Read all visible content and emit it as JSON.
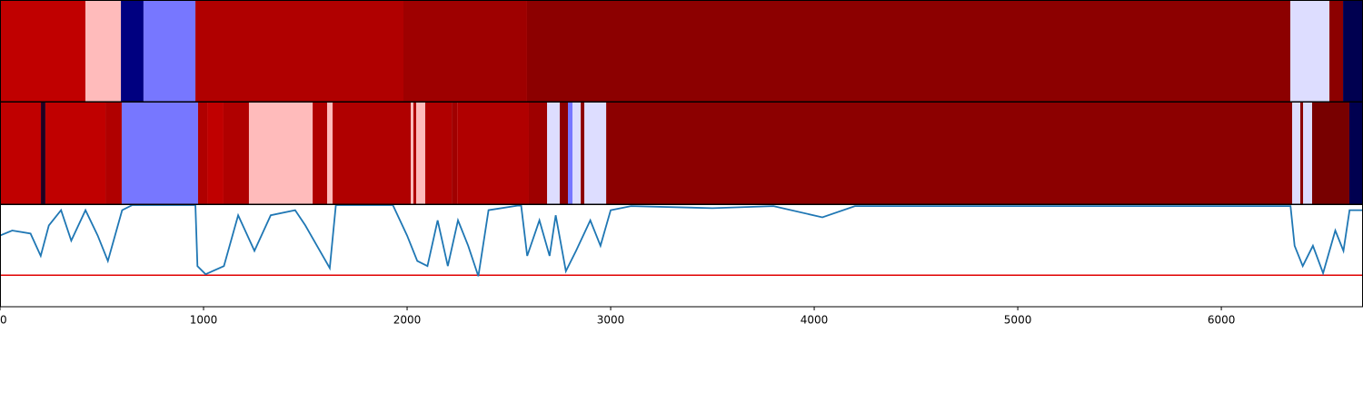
{
  "chart_data": {
    "type": "segments_and_line",
    "xlim": [
      0,
      6696
    ],
    "xticks": [
      0,
      1000,
      2000,
      3000,
      4000,
      5000,
      6000
    ],
    "tracks": [
      {
        "edges": [
          0,
          420,
          594,
          705,
          960,
          1982,
          2589,
          6339,
          6531,
          6598,
          6696
        ],
        "colors": [
          "#c00000",
          "#ffbbbb",
          "#000080",
          "#7777ff",
          "#b00000",
          "#9e0000",
          "#8c0000",
          "#ddddff",
          "#8c0000",
          "#000050"
        ]
      },
      {
        "edges": [
          0,
          201,
          223,
          518,
          598,
          973,
          1018,
          1098,
          1223,
          1536,
          1607,
          1634,
          2018,
          2031,
          2045,
          2089,
          2219,
          2246,
          2598,
          2688,
          2750,
          2790,
          2813,
          2853,
          2871,
          2978,
          6348,
          6388,
          6402,
          6446,
          6629,
          6696
        ],
        "colors": [
          "#c00000",
          "#200020",
          "#c00000",
          "#b00000",
          "#7777ff",
          "#b00000",
          "#c00000",
          "#b00000",
          "#ffbbbb",
          "#b00000",
          "#ffbbbb",
          "#b00000",
          "#ffbbbb",
          "#b00000",
          "#ffbbbb",
          "#b00000",
          "#a00000",
          "#b00000",
          "#9e0000",
          "#ddddff",
          "#8c0000",
          "#7777ff",
          "#ddddff",
          "#8c0000",
          "#ddddff",
          "#8c0000",
          "#ddddff",
          "#8c0000",
          "#ddddff",
          "#780000",
          "#000050"
        ]
      }
    ],
    "line": {
      "color": "#1f77b4",
      "ylim": [
        0,
        1
      ],
      "x": [
        0,
        60,
        150,
        200,
        240,
        300,
        350,
        420,
        480,
        530,
        600,
        650,
        960,
        970,
        1010,
        1100,
        1170,
        1250,
        1330,
        1450,
        1500,
        1600,
        1620,
        1650,
        1930,
        2000,
        2050,
        2100,
        2150,
        2200,
        2250,
        2300,
        2350,
        2400,
        2560,
        2590,
        2650,
        2700,
        2730,
        2780,
        2830,
        2900,
        2950,
        3000,
        3100,
        3500,
        3800,
        4040,
        4200,
        6340,
        6360,
        6400,
        6450,
        6500,
        6560,
        6600,
        6630,
        6696
      ],
      "values": [
        0.7,
        0.75,
        0.72,
        0.5,
        0.8,
        0.95,
        0.65,
        0.95,
        0.7,
        0.45,
        0.95,
        1.0,
        1.0,
        0.4,
        0.32,
        0.4,
        0.9,
        0.55,
        0.9,
        0.95,
        0.8,
        0.45,
        0.38,
        1.0,
        1.0,
        0.7,
        0.45,
        0.4,
        0.85,
        0.4,
        0.85,
        0.6,
        0.3,
        0.95,
        1.0,
        0.5,
        0.85,
        0.5,
        0.9,
        0.35,
        0.55,
        0.85,
        0.6,
        0.95,
        0.99,
        0.97,
        0.99,
        0.88,
        0.99,
        0.99,
        0.6,
        0.4,
        0.6,
        0.33,
        0.75,
        0.55,
        0.95,
        0.95
      ],
      "threshold": 0.31,
      "threshold_color": "#e00000"
    }
  }
}
